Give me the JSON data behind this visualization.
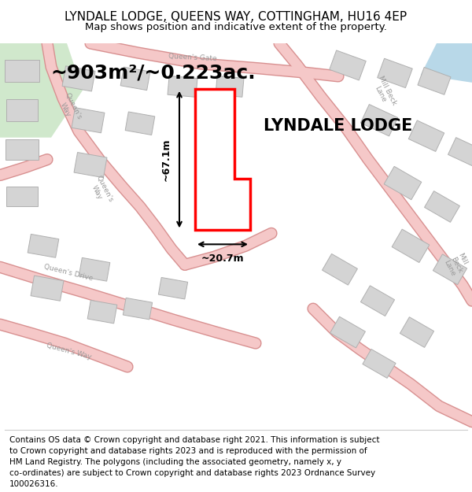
{
  "title": "LYNDALE LODGE, QUEENS WAY, COTTINGHAM, HU16 4EP",
  "subtitle": "Map shows position and indicative extent of the property.",
  "area_text": "~903m²/~0.223ac.",
  "property_name": "LYNDALE LODGE",
  "dim_height": "~67.1m",
  "dim_width": "~20.7m",
  "footer_lines": [
    "Contains OS data © Crown copyright and database right 2021. This information is subject",
    "to Crown copyright and database rights 2023 and is reproduced with the permission of",
    "HM Land Registry. The polygons (including the associated geometry, namely x, y",
    "co-ordinates) are subject to Crown copyright and database rights 2023 Ordnance Survey",
    "100026316."
  ],
  "map_bg": "#f5f0ea",
  "road_color": "#f5c8c8",
  "road_edge_color": "#d89090",
  "property_outline_color": "#ff0000",
  "building_fill": "#d4d4d4",
  "building_edge": "#b0b0b0",
  "green_area": "#d0e8cc",
  "blue_area": "#b8d8e8",
  "title_fontsize": 11,
  "subtitle_fontsize": 9.5,
  "area_fontsize": 18,
  "property_name_fontsize": 15,
  "footer_fontsize": 7.5,
  "road_label_color": "#999999"
}
